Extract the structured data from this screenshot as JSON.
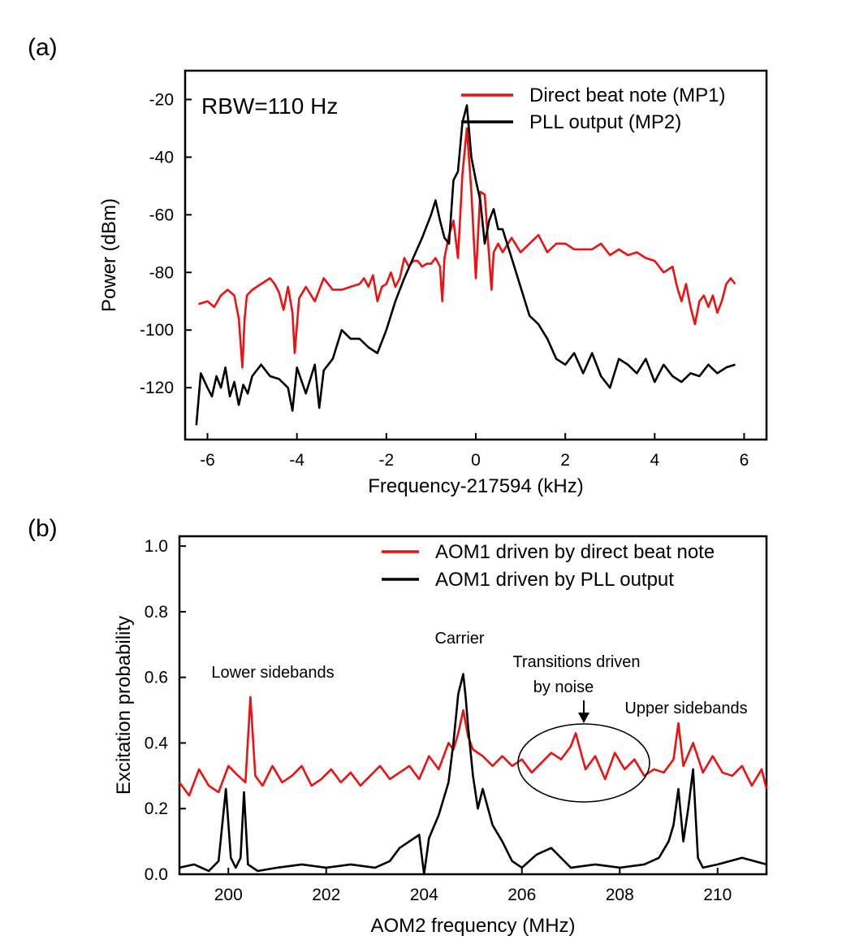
{
  "panels": {
    "a_label": "(a)",
    "b_label": "(b)"
  },
  "colors": {
    "red": "#ee1111",
    "black": "#000000"
  },
  "chart_data": [
    {
      "type": "line",
      "panel": "(a)",
      "xlabel": "Frequency-217594 (kHz)",
      "ylabel": "Power (dBm)",
      "xlim": [
        -6.5,
        6.5
      ],
      "ylim": [
        -138,
        -10
      ],
      "xticks": [
        -6,
        -4,
        -2,
        0,
        2,
        4,
        6
      ],
      "yticks": [
        -120,
        -100,
        -80,
        -60,
        -40,
        -20
      ],
      "annotation": "RBW=110 Hz",
      "legend_position": "top-right",
      "grid": false,
      "series": [
        {
          "name": "Direct beat note (MP1)",
          "color": "#ee1111",
          "x": [
            -6.2,
            -6.0,
            -5.85,
            -5.7,
            -5.55,
            -5.4,
            -5.3,
            -5.22,
            -5.17,
            -5.12,
            -5.0,
            -4.8,
            -4.6,
            -4.5,
            -4.4,
            -4.3,
            -4.2,
            -4.1,
            -4.05,
            -3.95,
            -3.8,
            -3.6,
            -3.4,
            -3.2,
            -3.0,
            -2.8,
            -2.6,
            -2.5,
            -2.4,
            -2.3,
            -2.2,
            -2.1,
            -2.0,
            -1.9,
            -1.8,
            -1.7,
            -1.6,
            -1.5,
            -1.4,
            -1.3,
            -1.2,
            -1.1,
            -1.0,
            -0.9,
            -0.8,
            -0.75,
            -0.7,
            -0.6,
            -0.5,
            -0.4,
            -0.3,
            -0.2,
            -0.1,
            0.0,
            0.1,
            0.2,
            0.3,
            0.35,
            0.4,
            0.5,
            0.6,
            0.8,
            1.0,
            1.2,
            1.4,
            1.6,
            1.8,
            2.0,
            2.2,
            2.4,
            2.6,
            2.8,
            3.0,
            3.2,
            3.4,
            3.6,
            3.8,
            4.0,
            4.2,
            4.4,
            4.5,
            4.6,
            4.7,
            4.8,
            4.9,
            5.0,
            5.1,
            5.2,
            5.3,
            5.4,
            5.5,
            5.6,
            5.7,
            5.8
          ],
          "y": [
            -91,
            -90,
            -92,
            -88,
            -86,
            -88,
            -96,
            -113,
            -96,
            -88,
            -86,
            -84,
            -82,
            -84,
            -87,
            -93,
            -85,
            -94,
            -108,
            -89,
            -85,
            -90,
            -82,
            -86,
            -86,
            -85,
            -84,
            -82,
            -85,
            -81,
            -90,
            -85,
            -84,
            -80,
            -85,
            -82,
            -75,
            -78,
            -76,
            -76,
            -78,
            -77,
            -77,
            -75,
            -78,
            -90,
            -75,
            -67,
            -62,
            -75,
            -46,
            -30,
            -52,
            -82,
            -52,
            -53,
            -75,
            -86,
            -73,
            -70,
            -73,
            -68,
            -73,
            -70,
            -67,
            -73,
            -70,
            -70,
            -72,
            -72,
            -72,
            -70,
            -74,
            -72,
            -74,
            -73,
            -75,
            -76,
            -80,
            -78,
            -85,
            -90,
            -84,
            -92,
            -98,
            -90,
            -88,
            -92,
            -88,
            -94,
            -90,
            -84,
            -82,
            -84
          ]
        },
        {
          "name": "PLL output  (MP2)",
          "color": "#000000",
          "x": [
            -6.25,
            -6.15,
            -6.0,
            -5.9,
            -5.8,
            -5.7,
            -5.6,
            -5.5,
            -5.4,
            -5.3,
            -5.2,
            -5.1,
            -5.0,
            -4.8,
            -4.6,
            -4.4,
            -4.2,
            -4.1,
            -4.0,
            -3.8,
            -3.6,
            -3.5,
            -3.4,
            -3.2,
            -3.0,
            -2.8,
            -2.6,
            -2.4,
            -2.2,
            -2.0,
            -1.8,
            -1.6,
            -1.4,
            -1.2,
            -1.0,
            -0.9,
            -0.8,
            -0.7,
            -0.6,
            -0.5,
            -0.4,
            -0.3,
            -0.2,
            -0.1,
            0.0,
            0.1,
            0.2,
            0.3,
            0.4,
            0.5,
            0.6,
            0.8,
            1.0,
            1.2,
            1.4,
            1.6,
            1.8,
            2.0,
            2.2,
            2.4,
            2.6,
            2.8,
            3.0,
            3.2,
            3.4,
            3.6,
            3.8,
            4.0,
            4.2,
            4.4,
            4.6,
            4.8,
            5.0,
            5.2,
            5.4,
            5.6,
            5.8
          ],
          "y": [
            -133,
            -115,
            -120,
            -123,
            -116,
            -120,
            -113,
            -123,
            -118,
            -126,
            -119,
            -122,
            -116,
            -112,
            -116,
            -117,
            -120,
            -128,
            -113,
            -122,
            -112,
            -127,
            -114,
            -110,
            -100,
            -103,
            -103,
            -106,
            -108,
            -100,
            -90,
            -82,
            -75,
            -68,
            -60,
            -55,
            -62,
            -68,
            -70,
            -48,
            -45,
            -28,
            -22,
            -40,
            -48,
            -55,
            -70,
            -62,
            -58,
            -65,
            -65,
            -75,
            -85,
            -95,
            -98,
            -103,
            -110,
            -112,
            -108,
            -115,
            -108,
            -116,
            -120,
            -110,
            -112,
            -115,
            -110,
            -118,
            -112,
            -116,
            -118,
            -115,
            -116,
            -112,
            -115,
            -113,
            -112
          ]
        }
      ]
    },
    {
      "type": "line",
      "panel": "(b)",
      "xlabel": "AOM2 frequency (MHz)",
      "ylabel": "Excitation probability",
      "xlim": [
        199,
        211
      ],
      "ylim": [
        0,
        1.03
      ],
      "xticks": [
        200,
        202,
        204,
        206,
        208,
        210
      ],
      "yticks": [
        0.0,
        0.2,
        0.4,
        0.6,
        0.8,
        1.0
      ],
      "legend_position": "top-right",
      "grid": false,
      "annotations": [
        "Lower sidebands",
        "Carrier",
        "Transitions driven",
        "by noise",
        "Upper sidebands"
      ],
      "series": [
        {
          "name": "AOM1 driven by direct beat note",
          "color": "#ee1111",
          "x": [
            199.0,
            199.2,
            199.4,
            199.6,
            199.8,
            200.0,
            200.2,
            200.35,
            200.45,
            200.55,
            200.7,
            200.9,
            201.1,
            201.3,
            201.5,
            201.7,
            201.9,
            202.1,
            202.3,
            202.5,
            202.7,
            202.9,
            203.1,
            203.3,
            203.5,
            203.7,
            203.9,
            204.1,
            204.3,
            204.5,
            204.6,
            204.7,
            204.8,
            204.9,
            205.0,
            205.2,
            205.4,
            205.6,
            205.8,
            206.0,
            206.2,
            206.4,
            206.6,
            206.8,
            207.0,
            207.1,
            207.3,
            207.5,
            207.7,
            207.9,
            208.1,
            208.3,
            208.5,
            208.7,
            208.9,
            209.1,
            209.2,
            209.3,
            209.5,
            209.7,
            209.9,
            210.1,
            210.3,
            210.5,
            210.7,
            210.9,
            211.0
          ],
          "y": [
            0.28,
            0.24,
            0.32,
            0.27,
            0.25,
            0.33,
            0.3,
            0.28,
            0.54,
            0.3,
            0.27,
            0.33,
            0.28,
            0.3,
            0.33,
            0.27,
            0.29,
            0.32,
            0.28,
            0.31,
            0.27,
            0.3,
            0.33,
            0.29,
            0.31,
            0.33,
            0.29,
            0.36,
            0.32,
            0.4,
            0.38,
            0.43,
            0.5,
            0.42,
            0.38,
            0.36,
            0.33,
            0.36,
            0.33,
            0.35,
            0.31,
            0.34,
            0.37,
            0.35,
            0.39,
            0.43,
            0.32,
            0.36,
            0.29,
            0.37,
            0.32,
            0.35,
            0.3,
            0.32,
            0.31,
            0.35,
            0.46,
            0.33,
            0.4,
            0.31,
            0.36,
            0.31,
            0.3,
            0.33,
            0.27,
            0.32,
            0.26
          ]
        },
        {
          "name": "AOM1 driven by PLL output",
          "color": "#000000",
          "x": [
            199.0,
            199.3,
            199.6,
            199.8,
            199.95,
            200.05,
            200.15,
            200.25,
            200.32,
            200.4,
            200.6,
            201.0,
            201.5,
            202.0,
            202.5,
            203.0,
            203.3,
            203.5,
            203.7,
            203.9,
            204.0,
            204.1,
            204.3,
            204.5,
            204.6,
            204.7,
            204.8,
            204.85,
            204.9,
            205.0,
            205.1,
            205.2,
            205.4,
            205.6,
            205.8,
            206.0,
            206.3,
            206.6,
            207.0,
            207.5,
            208.0,
            208.5,
            208.8,
            209.0,
            209.1,
            209.2,
            209.3,
            209.4,
            209.5,
            209.6,
            209.7,
            210.0,
            210.5,
            211.0
          ],
          "y": [
            0.02,
            0.03,
            0.01,
            0.04,
            0.26,
            0.05,
            0.02,
            0.05,
            0.25,
            0.03,
            0.01,
            0.02,
            0.03,
            0.02,
            0.03,
            0.02,
            0.04,
            0.08,
            0.1,
            0.12,
            0.0,
            0.11,
            0.18,
            0.28,
            0.4,
            0.55,
            0.61,
            0.54,
            0.45,
            0.3,
            0.2,
            0.26,
            0.15,
            0.1,
            0.04,
            0.02,
            0.06,
            0.08,
            0.02,
            0.03,
            0.02,
            0.03,
            0.05,
            0.1,
            0.15,
            0.26,
            0.1,
            0.2,
            0.32,
            0.05,
            0.02,
            0.03,
            0.05,
            0.03
          ]
        }
      ]
    }
  ]
}
